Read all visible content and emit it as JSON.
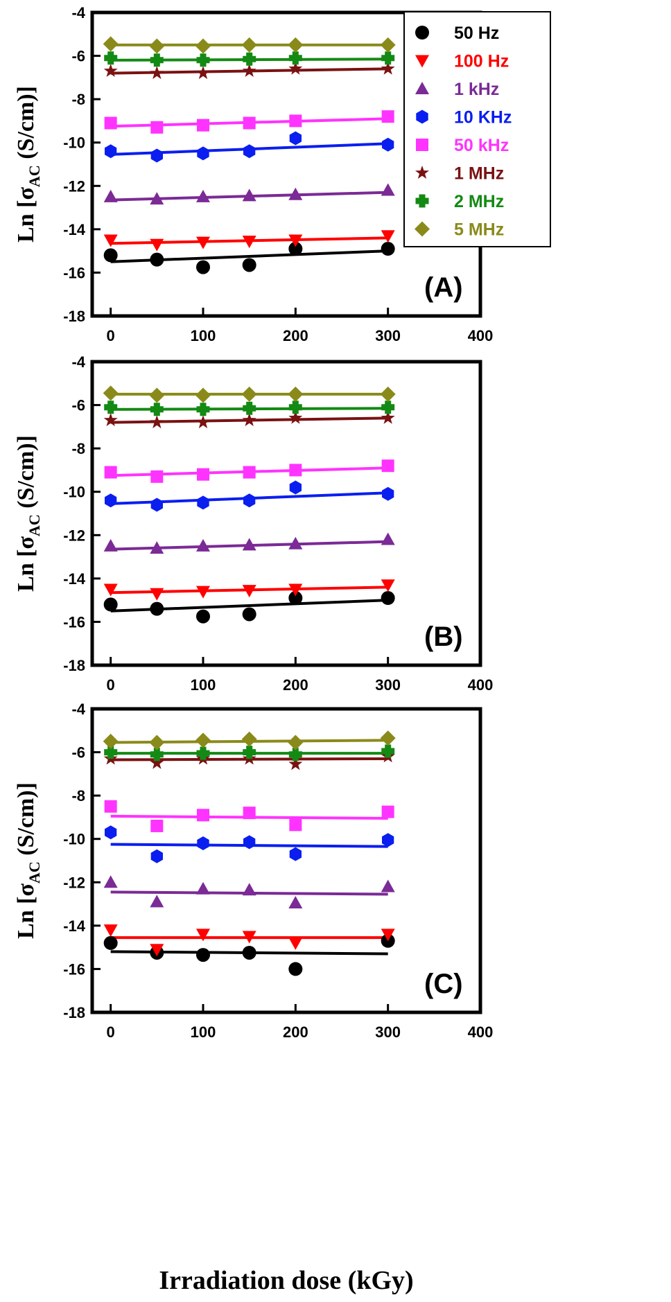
{
  "series_meta": [
    {
      "name": "50 Hz",
      "color": "#000000",
      "marker": "circle"
    },
    {
      "name": "100 Hz",
      "color": "#ff0000",
      "marker": "triangle-down"
    },
    {
      "name": "1 kHz",
      "color": "#7b2a96",
      "marker": "triangle-up"
    },
    {
      "name": "10 KHz",
      "color": "#0a1ef0",
      "marker": "hexagon"
    },
    {
      "name": "50 kHz",
      "color": "#ff33ff",
      "marker": "square"
    },
    {
      "name": "1 MHz",
      "color": "#7a1212",
      "marker": "star"
    },
    {
      "name": "2 MHz",
      "color": "#138a13",
      "marker": "plus"
    },
    {
      "name": "5 MHz",
      "color": "#8a8a1a",
      "marker": "diamond"
    }
  ],
  "axes": {
    "xlabel": "Irradiation dose (kGy)",
    "ylabel_prefix": "Ln [σ",
    "ylabel_sub": "AC",
    "ylabel_suffix": " (S/cm)]"
  },
  "chart_data": [
    {
      "type": "scatter",
      "panel_label": "(A)",
      "xlim": [
        -20,
        400
      ],
      "ylim": [
        -18,
        -4
      ],
      "xticks": [
        0,
        100,
        200,
        300,
        400
      ],
      "yticks": [
        -18,
        -16,
        -14,
        -12,
        -10,
        -8,
        -6,
        -4
      ],
      "legend": "top-right",
      "x": [
        0,
        50,
        100,
        150,
        200,
        300
      ],
      "series": [
        {
          "name": "50 Hz",
          "values": [
            -15.2,
            -15.4,
            -15.75,
            -15.65,
            -14.9,
            -14.9
          ],
          "fit": [
            -15.5,
            -15.0
          ]
        },
        {
          "name": "100 Hz",
          "values": [
            -14.5,
            -14.7,
            -14.6,
            -14.55,
            -14.5,
            -14.3
          ],
          "fit": [
            -14.65,
            -14.4
          ]
        },
        {
          "name": "1 kHz",
          "values": [
            -12.5,
            -12.6,
            -12.5,
            -12.45,
            -12.4,
            -12.2
          ],
          "fit": [
            -12.65,
            -12.3
          ]
        },
        {
          "name": "10 KHz",
          "values": [
            -10.4,
            -10.6,
            -10.5,
            -10.4,
            -9.8,
            -10.1
          ],
          "fit": [
            -10.55,
            -10.05
          ]
        },
        {
          "name": "50 kHz",
          "values": [
            -9.1,
            -9.3,
            -9.2,
            -9.1,
            -9.0,
            -8.8
          ],
          "fit": [
            -9.25,
            -8.9
          ]
        },
        {
          "name": "1 MHz",
          "values": [
            -6.7,
            -6.8,
            -6.8,
            -6.7,
            -6.6,
            -6.6
          ],
          "fit": [
            -6.8,
            -6.6
          ]
        },
        {
          "name": "2 MHz",
          "values": [
            -6.1,
            -6.2,
            -6.2,
            -6.15,
            -6.1,
            -6.1
          ],
          "fit": [
            -6.2,
            -6.15
          ]
        },
        {
          "name": "5 MHz",
          "values": [
            -5.45,
            -5.55,
            -5.55,
            -5.5,
            -5.5,
            -5.5
          ],
          "fit": [
            -5.5,
            -5.5
          ]
        }
      ]
    },
    {
      "type": "scatter",
      "panel_label": "(B)",
      "xlim": [
        -20,
        400
      ],
      "ylim": [
        -18,
        -4
      ],
      "xticks": [
        0,
        100,
        200,
        300,
        400
      ],
      "yticks": [
        -18,
        -16,
        -14,
        -12,
        -10,
        -8,
        -6,
        -4
      ],
      "x": [
        0,
        50,
        100,
        150,
        200,
        300
      ],
      "series": [
        {
          "name": "50 Hz",
          "values": [
            -15.2,
            -15.4,
            -15.75,
            -15.65,
            -14.9,
            -14.9
          ],
          "fit": [
            -15.5,
            -15.0
          ]
        },
        {
          "name": "100 Hz",
          "values": [
            -14.5,
            -14.7,
            -14.6,
            -14.55,
            -14.5,
            -14.3
          ],
          "fit": [
            -14.65,
            -14.4
          ]
        },
        {
          "name": "1 kHz",
          "values": [
            -12.5,
            -12.6,
            -12.5,
            -12.45,
            -12.4,
            -12.2
          ],
          "fit": [
            -12.65,
            -12.3
          ]
        },
        {
          "name": "10 KHz",
          "values": [
            -10.4,
            -10.6,
            -10.5,
            -10.4,
            -9.8,
            -10.1
          ],
          "fit": [
            -10.55,
            -10.05
          ]
        },
        {
          "name": "50 kHz",
          "values": [
            -9.1,
            -9.3,
            -9.2,
            -9.1,
            -9.0,
            -8.8
          ],
          "fit": [
            -9.25,
            -8.9
          ]
        },
        {
          "name": "1 MHz",
          "values": [
            -6.7,
            -6.8,
            -6.8,
            -6.7,
            -6.6,
            -6.6
          ],
          "fit": [
            -6.8,
            -6.6
          ]
        },
        {
          "name": "2 MHz",
          "values": [
            -6.1,
            -6.2,
            -6.2,
            -6.15,
            -6.1,
            -6.1
          ],
          "fit": [
            -6.2,
            -6.15
          ]
        },
        {
          "name": "5 MHz",
          "values": [
            -5.45,
            -5.55,
            -5.55,
            -5.5,
            -5.5,
            -5.5
          ],
          "fit": [
            -5.5,
            -5.5
          ]
        }
      ]
    },
    {
      "type": "scatter",
      "panel_label": "(C)",
      "xlim": [
        -20,
        400
      ],
      "ylim": [
        -18,
        -4
      ],
      "xticks": [
        0,
        100,
        200,
        300,
        400
      ],
      "yticks": [
        -18,
        -16,
        -14,
        -12,
        -10,
        -8,
        -6,
        -4
      ],
      "x": [
        0,
        50,
        100,
        150,
        200,
        300
      ],
      "series": [
        {
          "name": "50 Hz",
          "values": [
            -14.8,
            -15.25,
            -15.35,
            -15.25,
            -16.0,
            -14.7
          ],
          "fit": [
            -15.2,
            -15.3
          ]
        },
        {
          "name": "100 Hz",
          "values": [
            -14.2,
            -15.1,
            -14.4,
            -14.5,
            -14.8,
            -14.4
          ],
          "fit": [
            -14.55,
            -14.55
          ]
        },
        {
          "name": "1 kHz",
          "values": [
            -12.0,
            -12.9,
            -12.3,
            -12.35,
            -12.95,
            -12.2
          ],
          "fit": [
            -12.45,
            -12.55
          ]
        },
        {
          "name": "10 KHz",
          "values": [
            -9.7,
            -10.8,
            -10.2,
            -10.15,
            -10.7,
            -10.05
          ],
          "fit": [
            -10.25,
            -10.35
          ]
        },
        {
          "name": "50 kHz",
          "values": [
            -8.5,
            -9.4,
            -8.9,
            -8.8,
            -9.35,
            -8.75
          ],
          "fit": [
            -8.95,
            -9.05
          ]
        },
        {
          "name": "1 MHz",
          "values": [
            -6.3,
            -6.5,
            -6.3,
            -6.3,
            -6.55,
            -6.2
          ],
          "fit": [
            -6.35,
            -6.3
          ]
        },
        {
          "name": "2 MHz",
          "values": [
            -6.0,
            -6.1,
            -6.05,
            -6.0,
            -6.1,
            -5.95
          ],
          "fit": [
            -6.05,
            -6.05
          ]
        },
        {
          "name": "5 MHz",
          "values": [
            -5.5,
            -5.55,
            -5.45,
            -5.4,
            -5.55,
            -5.35
          ],
          "fit": [
            -5.55,
            -5.45
          ]
        }
      ]
    }
  ]
}
